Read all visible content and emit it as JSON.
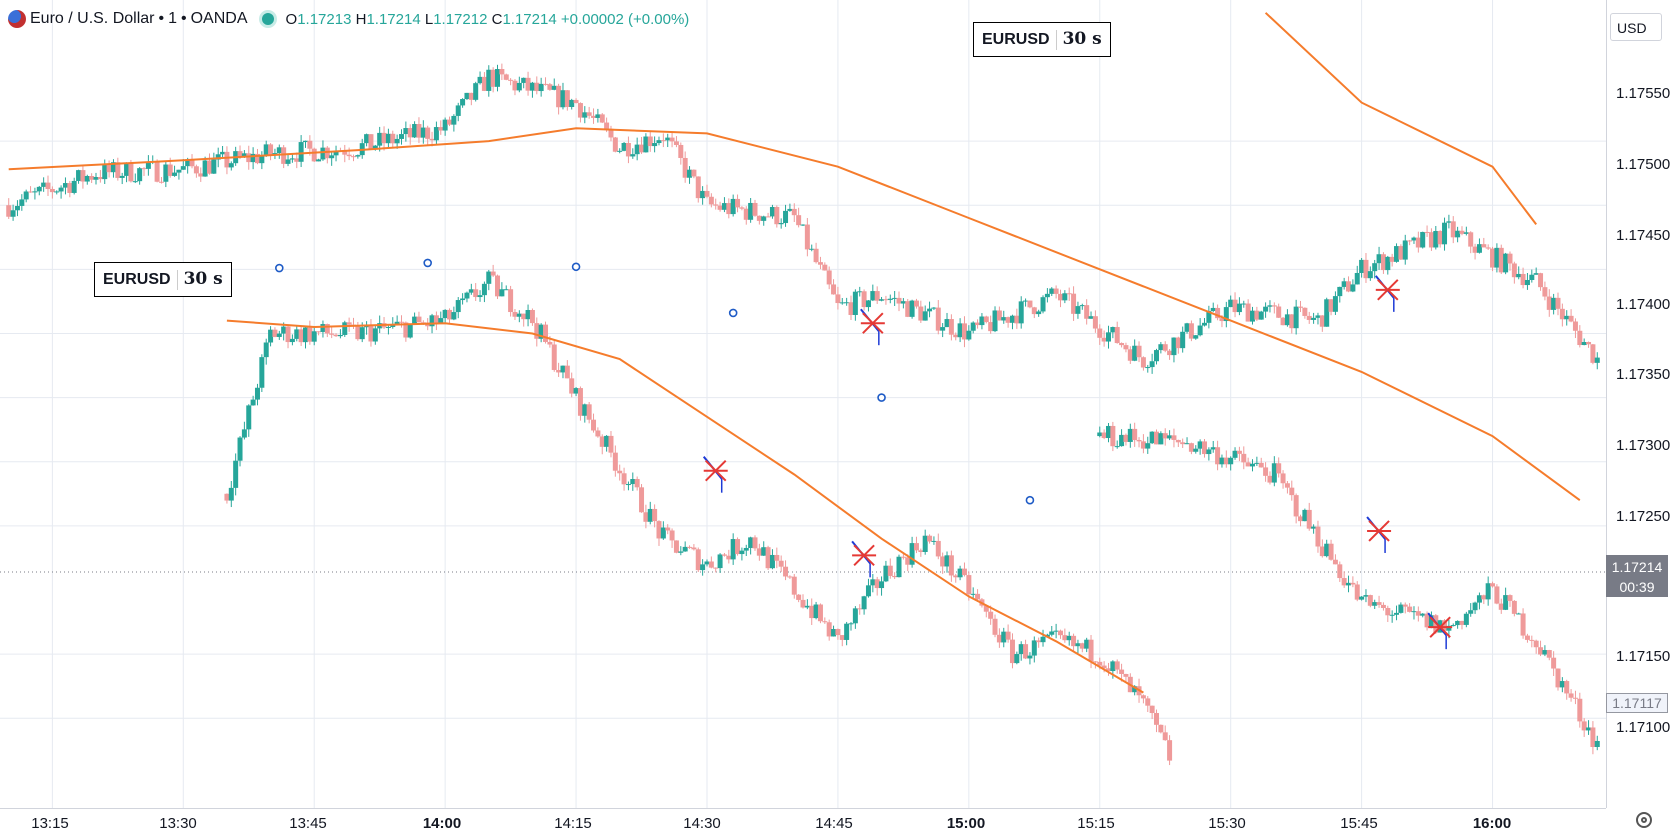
{
  "header": {
    "symbol": "Euro / U.S. Dollar",
    "interval": "1",
    "exchange": "OANDA",
    "open_label": "O",
    "open": "1.17213",
    "high_label": "H",
    "high": "1.17214",
    "low_label": "L",
    "low": "1.17212",
    "close_label": "C",
    "close": "1.17214",
    "change": "+0.00002 (+0.00%)",
    "dot": "•"
  },
  "watermarks": [
    {
      "symbol": "EURUSD",
      "interval": "30 s"
    },
    {
      "symbol": "EURUSD",
      "interval": "30 s"
    }
  ],
  "price_axis": {
    "currency": "USD",
    "ticks": [
      "1.17550",
      "1.17500",
      "1.17450",
      "1.17400",
      "1.17350",
      "1.17300",
      "1.17250",
      "1.17150",
      "1.17100"
    ],
    "current_price": "1.17214",
    "countdown": "00:39",
    "ref_price": "1.17117"
  },
  "time_axis": {
    "ticks": [
      {
        "label": "13:15",
        "bold": false
      },
      {
        "label": "13:30",
        "bold": false
      },
      {
        "label": "13:45",
        "bold": false
      },
      {
        "label": "14:00",
        "bold": true
      },
      {
        "label": "14:15",
        "bold": false
      },
      {
        "label": "14:30",
        "bold": false
      },
      {
        "label": "14:45",
        "bold": false
      },
      {
        "label": "15:00",
        "bold": true
      },
      {
        "label": "15:15",
        "bold": false
      },
      {
        "label": "15:30",
        "bold": false
      },
      {
        "label": "15:45",
        "bold": false
      },
      {
        "label": "16:00",
        "bold": true
      }
    ]
  },
  "colors": {
    "up": "#26a69a",
    "down": "#ef9a9a",
    "ma": "#f57c2c",
    "grid": "#e6eaf1",
    "marker_star": "#e53935",
    "marker_arrow": "#1e3bd6",
    "circle": "#1e5bc6"
  },
  "chart_data": {
    "type": "candlestick",
    "symbol": "EURUSD",
    "ylim": [
      1.1703,
      1.1766
    ],
    "xlim": [
      "13:09",
      "16:13"
    ],
    "main_series": {
      "moving_average": [
        [
          "13:10",
          1.17528
        ],
        [
          "13:30",
          1.17535
        ],
        [
          "13:50",
          1.17543
        ],
        [
          "14:05",
          1.1755
        ],
        [
          "14:15",
          1.1756
        ],
        [
          "14:30",
          1.17556
        ],
        [
          "14:45",
          1.1753
        ],
        [
          "15:00",
          1.1749
        ],
        [
          "15:15",
          1.1745
        ],
        [
          "15:30",
          1.1741
        ],
        [
          "15:45",
          1.1737
        ],
        [
          "16:00",
          1.1732
        ],
        [
          "16:10",
          1.1727
        ]
      ],
      "anchors": [
        [
          "13:10",
          1.175
        ],
        [
          "13:20",
          1.17525
        ],
        [
          "13:30",
          1.17528
        ],
        [
          "13:40",
          1.1754
        ],
        [
          "13:50",
          1.17545
        ],
        [
          "14:00",
          1.1756
        ],
        [
          "14:05",
          1.176
        ],
        [
          "14:15",
          1.1758
        ],
        [
          "14:20",
          1.17545
        ],
        [
          "14:25",
          1.17555
        ],
        [
          "14:30",
          1.175
        ],
        [
          "14:40",
          1.1749
        ],
        [
          "14:45",
          1.1742
        ],
        [
          "14:50",
          1.1743
        ],
        [
          "15:00",
          1.174
        ],
        [
          "15:10",
          1.1743
        ],
        [
          "15:20",
          1.1738
        ],
        [
          "15:30",
          1.1742
        ],
        [
          "15:40",
          1.1741
        ],
        [
          "15:45",
          1.1745
        ],
        [
          "15:55",
          1.1748
        ],
        [
          "16:05",
          1.1744
        ],
        [
          "16:12",
          1.1738
        ]
      ]
    },
    "overlay_series": {
      "moving_average": [
        [
          "13:35",
          1.1741
        ],
        [
          "13:45",
          1.17405
        ],
        [
          "14:00",
          1.17408
        ],
        [
          "14:10",
          1.174
        ],
        [
          "14:20",
          1.1738
        ],
        [
          "14:30",
          1.17335
        ],
        [
          "14:40",
          1.1729
        ],
        [
          "14:50",
          1.1724
        ],
        [
          "15:00",
          1.17195
        ],
        [
          "15:10",
          1.1716
        ],
        [
          "15:20",
          1.1712
        ]
      ],
      "anchors": [
        [
          "13:35",
          1.17275
        ],
        [
          "13:40",
          1.174
        ],
        [
          "13:50",
          1.174
        ],
        [
          "14:00",
          1.1741
        ],
        [
          "14:05",
          1.1744
        ],
        [
          "14:10",
          1.1741
        ],
        [
          "14:15",
          1.1735
        ],
        [
          "14:25",
          1.1724
        ],
        [
          "14:30",
          1.1722
        ],
        [
          "14:35",
          1.1724
        ],
        [
          "14:45",
          1.1716
        ],
        [
          "14:50",
          1.1721
        ],
        [
          "14:55",
          1.1724
        ],
        [
          "15:00",
          1.172
        ],
        [
          "15:05",
          1.1715
        ],
        [
          "15:10",
          1.1716
        ],
        [
          "15:15",
          1.1715
        ],
        [
          "15:20",
          1.1711
        ],
        [
          "15:23",
          1.1707
        ]
      ]
    },
    "overlay_series_2": {
      "moving_average": [
        [
          "15:34",
          1.1765
        ],
        [
          "15:45",
          1.1758
        ],
        [
          "16:00",
          1.1753
        ],
        [
          "16:05",
          1.17485
        ]
      ],
      "anchors": [
        [
          "15:15",
          1.1732
        ],
        [
          "15:25",
          1.17315
        ],
        [
          "15:35",
          1.1729
        ],
        [
          "15:45",
          1.1719
        ],
        [
          "15:55",
          1.1717
        ],
        [
          "16:00",
          1.172
        ],
        [
          "16:05",
          1.1716
        ],
        [
          "16:12",
          1.1708
        ]
      ]
    },
    "markers": [
      {
        "time": "14:31",
        "price": 1.17293
      },
      {
        "time": "14:48",
        "price": 1.17227
      },
      {
        "time": "14:49",
        "price": 1.17408
      },
      {
        "time": "15:47",
        "price": 1.17246
      },
      {
        "time": "15:48",
        "price": 1.17434
      },
      {
        "time": "15:54",
        "price": 1.17171
      }
    ],
    "circles": [
      {
        "time": "13:41",
        "price": 1.17451
      },
      {
        "time": "13:58",
        "price": 1.17455
      },
      {
        "time": "14:15",
        "price": 1.17452
      },
      {
        "time": "14:33",
        "price": 1.17416
      },
      {
        "time": "14:50",
        "price": 1.1735
      },
      {
        "time": "15:07",
        "price": 1.1727
      }
    ]
  }
}
